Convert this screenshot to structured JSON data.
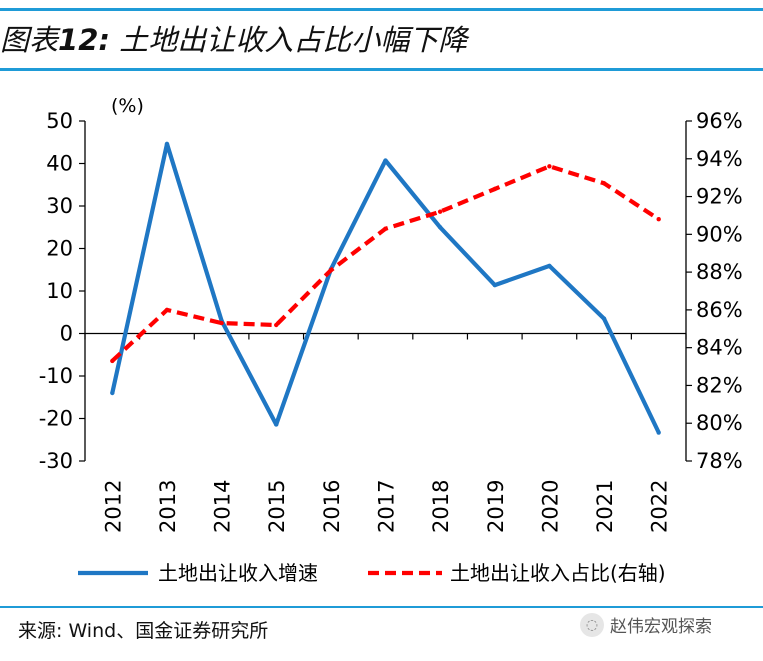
{
  "header": {
    "title_prefix": "图表",
    "title_number": "12:",
    "title_text": "土地出让收入占比小幅下降"
  },
  "colors": {
    "accent_rule": "#1f9bd7",
    "series_growth": "#1f77c4",
    "series_share": "#ff0000"
  },
  "chart_data": {
    "type": "line",
    "x": [
      "2012",
      "2013",
      "2014",
      "2015",
      "2016",
      "2017",
      "2018",
      "2019",
      "2020",
      "2021",
      "2022"
    ],
    "left_axis": {
      "unit_label": "(%)",
      "ylim": [
        -30,
        50
      ],
      "ticks": [
        50,
        40,
        30,
        20,
        10,
        0,
        -10,
        -20,
        -30
      ],
      "tick_labels": [
        "50",
        "40",
        "30",
        "20",
        "10",
        "0",
        "-10",
        "-20",
        "-30"
      ]
    },
    "right_axis": {
      "ylim": [
        78,
        96
      ],
      "ticks": [
        96,
        94,
        92,
        90,
        88,
        86,
        84,
        82,
        80,
        78
      ],
      "tick_labels": [
        "96%",
        "94%",
        "92%",
        "90%",
        "88%",
        "86%",
        "84%",
        "82%",
        "80%",
        "78%"
      ]
    },
    "series": [
      {
        "name": "土地出让收入增速",
        "axis": "left",
        "style": "solid",
        "values": [
          -14.0,
          44.6,
          3.0,
          -21.4,
          15.1,
          40.7,
          25.0,
          11.4,
          15.9,
          3.5,
          -23.3
        ]
      },
      {
        "name": "土地出让收入占比(右轴)",
        "axis": "right",
        "style": "dashed",
        "values": [
          83.3,
          86.0,
          85.3,
          85.2,
          88.1,
          90.3,
          91.2,
          92.4,
          93.6,
          92.7,
          90.8
        ]
      }
    ],
    "legend": [
      "土地出让收入增速",
      "土地出让收入占比(右轴)"
    ],
    "legend_position": "bottom"
  },
  "footer": {
    "source": "来源:  Wind、国金证券研究所",
    "watermark": "赵伟宏观探索",
    "watermark_icon": "wechat-icon"
  }
}
